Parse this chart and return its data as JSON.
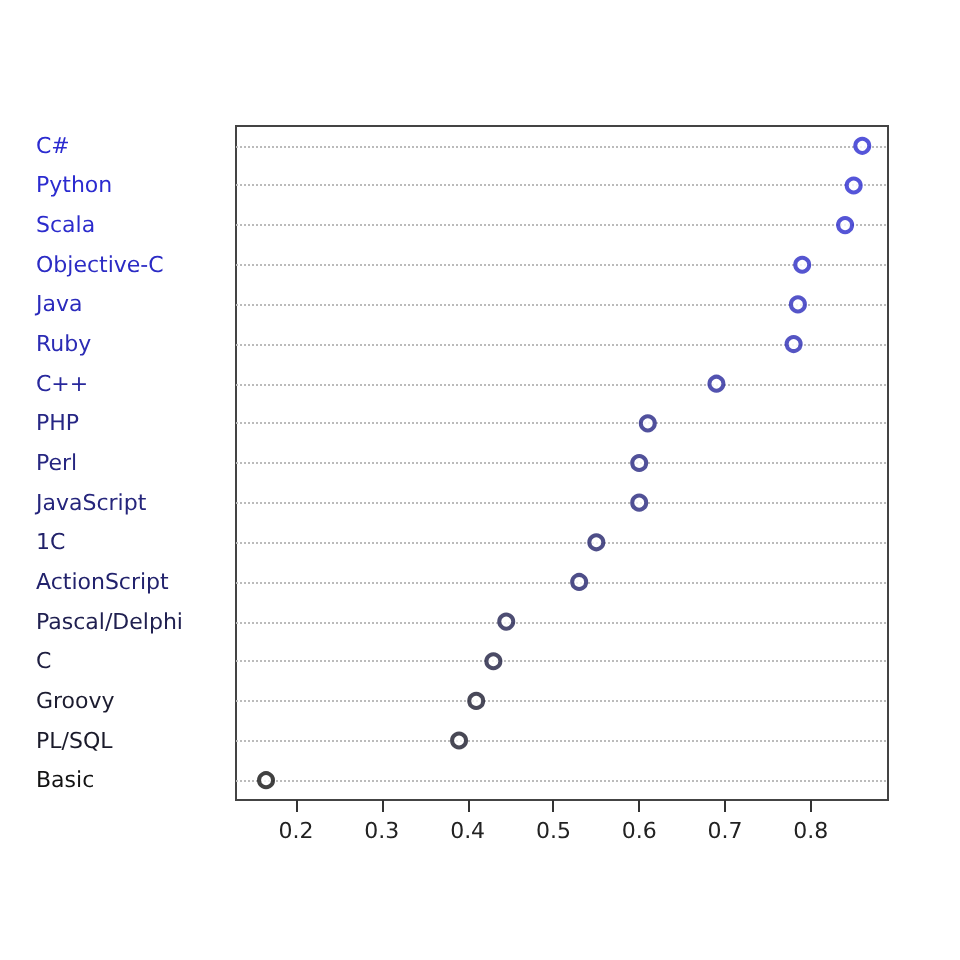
{
  "chart_data": {
    "type": "scatter",
    "orientation": "horizontal",
    "categories": [
      "C#",
      "Python",
      "Scala",
      "Objective-C",
      "Java",
      "Ruby",
      "C++",
      "PHP",
      "Perl",
      "JavaScript",
      "1C",
      "ActionScript",
      "Pascal/Delphi",
      "C",
      "Groovy",
      "PL/SQL",
      "Basic"
    ],
    "values": [
      0.86,
      0.85,
      0.84,
      0.79,
      0.785,
      0.78,
      0.69,
      0.61,
      0.6,
      0.6,
      0.55,
      0.53,
      0.445,
      0.43,
      0.41,
      0.39,
      0.165
    ],
    "colors": [
      "#2b2bd0",
      "#2b2bd0",
      "#2b2bcc",
      "#2b2bc4",
      "#2b2bbc",
      "#2b2bb4",
      "#28289c",
      "#262684",
      "#262680",
      "#25257c",
      "#22226a",
      "#22226c",
      "#202050",
      "#1e1e40",
      "#1c1c30",
      "#1a1a2a",
      "#111111"
    ],
    "xlim": [
      0.13,
      0.89
    ],
    "xticks": [
      0.2,
      0.3,
      0.4,
      0.5,
      0.6,
      0.7,
      0.8
    ],
    "grid": "y",
    "marker": "circle"
  }
}
